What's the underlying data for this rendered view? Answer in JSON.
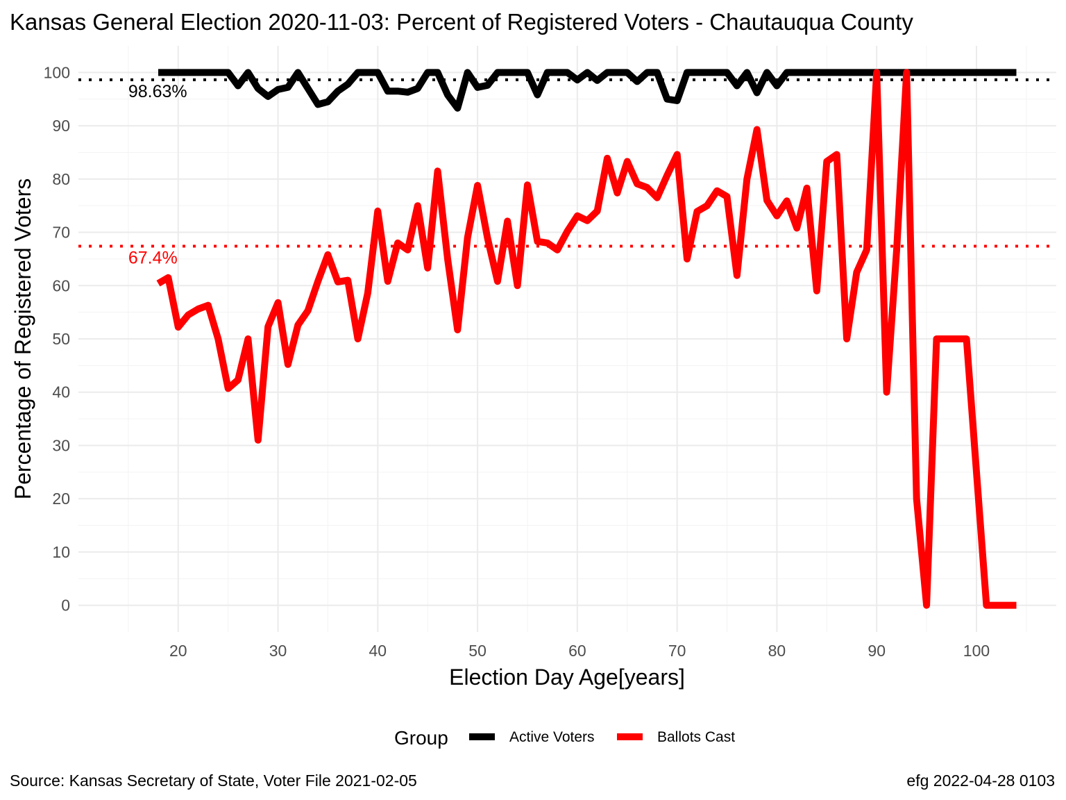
{
  "chart_data": {
    "type": "line",
    "title": "Kansas General Election 2020-11-03:  Percent of Registered Voters - Chautauqua County",
    "xlabel": "Election Day Age[years]",
    "ylabel": "Percentage of Registered Voters",
    "xlim": [
      10,
      108
    ],
    "ylim": [
      -5,
      105
    ],
    "x_ticks": [
      20,
      30,
      40,
      50,
      60,
      70,
      80,
      90,
      100
    ],
    "y_ticks": [
      0,
      10,
      20,
      30,
      40,
      50,
      60,
      70,
      80,
      90,
      100
    ],
    "grid": true,
    "legend": {
      "title": "Group",
      "placement": "bottom"
    },
    "series": [
      {
        "name": "Active Voters",
        "color": "#000000",
        "x": [
          18,
          19,
          20,
          21,
          22,
          23,
          24,
          25,
          26,
          27,
          28,
          29,
          30,
          31,
          32,
          33,
          34,
          35,
          36,
          37,
          38,
          39,
          40,
          41,
          42,
          43,
          44,
          45,
          46,
          47,
          48,
          49,
          50,
          51,
          52,
          53,
          54,
          55,
          56,
          57,
          58,
          59,
          60,
          61,
          62,
          63,
          64,
          65,
          66,
          67,
          68,
          69,
          70,
          71,
          72,
          73,
          74,
          75,
          76,
          77,
          78,
          79,
          80,
          81,
          82,
          83,
          84,
          85,
          86,
          87,
          88,
          89,
          90,
          91,
          92,
          93,
          94,
          95,
          96,
          97,
          98,
          99,
          100,
          101,
          102,
          103,
          104
        ],
        "y": [
          100,
          100,
          100,
          100,
          100,
          100,
          100,
          100,
          97.5,
          100,
          97,
          95.5,
          96.8,
          97.2,
          100,
          97,
          94,
          94.5,
          96.5,
          97.8,
          100,
          100,
          100,
          96.5,
          96.5,
          96.3,
          97,
          100,
          100,
          95.8,
          93.3,
          100,
          97.2,
          97.6,
          100,
          100,
          100,
          100,
          95.8,
          100,
          100,
          100,
          98.6,
          100,
          98.5,
          100,
          100,
          100,
          98.3,
          100,
          100,
          95,
          94.7,
          100,
          100,
          100,
          100,
          100,
          97.5,
          100,
          96.2,
          100,
          97.5,
          100,
          100,
          100,
          100,
          100,
          100,
          100,
          100,
          100,
          100,
          100,
          100,
          100,
          100,
          100,
          100,
          100,
          100,
          100,
          100,
          100,
          100,
          100,
          100
        ]
      },
      {
        "name": "Ballots Cast",
        "color": "#ff0000",
        "x": [
          18,
          19,
          20,
          21,
          22,
          23,
          24,
          25,
          26,
          27,
          28,
          29,
          30,
          31,
          32,
          33,
          34,
          35,
          36,
          37,
          38,
          39,
          40,
          41,
          42,
          43,
          44,
          45,
          46,
          47,
          48,
          49,
          50,
          51,
          52,
          53,
          54,
          55,
          56,
          57,
          58,
          59,
          60,
          61,
          62,
          63,
          64,
          65,
          66,
          67,
          68,
          69,
          70,
          71,
          72,
          73,
          74,
          75,
          76,
          77,
          78,
          79,
          80,
          81,
          82,
          83,
          84,
          85,
          86,
          87,
          88,
          89,
          90,
          91,
          92,
          93,
          94,
          95,
          96,
          97,
          98,
          99,
          100,
          101,
          102,
          103,
          104
        ],
        "y": [
          60.4,
          61.5,
          52.2,
          54.5,
          55.6,
          56.3,
          50,
          40.7,
          42.3,
          50,
          31,
          52.3,
          56.8,
          45.2,
          52.6,
          55.3,
          60.8,
          65.8,
          60.7,
          61,
          50,
          58.6,
          74,
          60.8,
          68,
          66.7,
          75,
          63.3,
          81.5,
          65,
          51.7,
          69,
          78.8,
          68.9,
          60.8,
          72.1,
          60,
          78.9,
          68.3,
          68,
          66.7,
          70.2,
          73.1,
          72.2,
          74,
          83.9,
          77.4,
          83.3,
          79.1,
          78.4,
          76.5,
          80.7,
          84.6,
          65,
          73.9,
          75,
          77.8,
          76.7,
          61.9,
          80,
          89.3,
          76,
          73.1,
          75.9,
          70.8,
          78.3,
          59,
          83.3,
          84.6,
          50,
          62.5,
          66.7,
          100,
          40,
          66.7,
          100,
          20,
          0,
          50,
          50,
          50,
          50,
          25,
          0,
          0,
          0,
          0
        ]
      }
    ],
    "reference_lines": [
      {
        "value": 98.63,
        "label": "98.63%",
        "color": "#000000"
      },
      {
        "value": 67.4,
        "label": "67.4%",
        "color": "#ff0000"
      }
    ]
  },
  "caption": {
    "left": "Source:  Kansas Secretary of State, Voter File  2021-02-05",
    "right": "efg 2022-04-28 0103"
  }
}
